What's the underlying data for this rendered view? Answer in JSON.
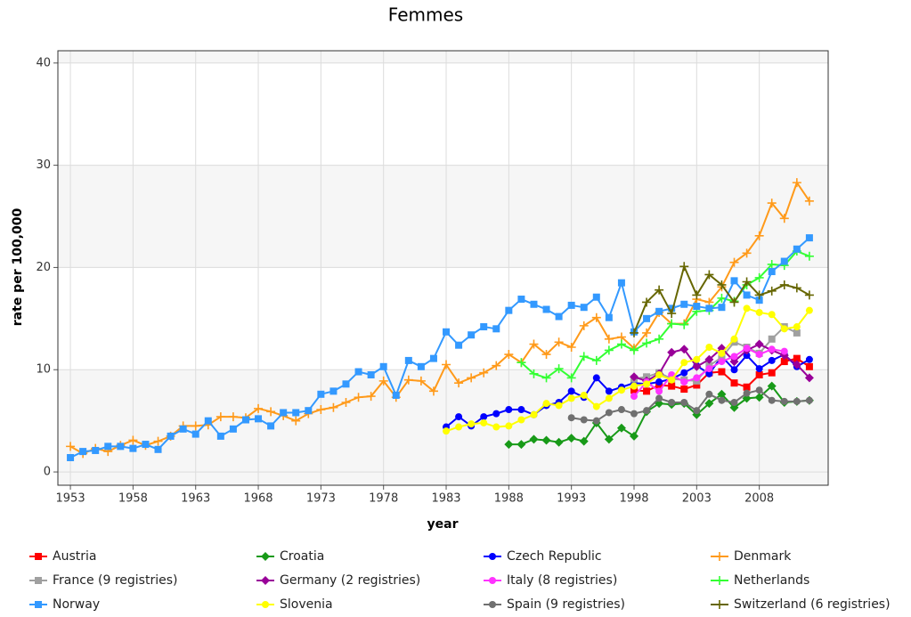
{
  "chart_data": {
    "type": "line",
    "title": "Femmes",
    "x_label": "year",
    "y_label": "rate per 100,000",
    "x": [
      1953,
      1954,
      1955,
      1956,
      1957,
      1958,
      1959,
      1960,
      1961,
      1962,
      1963,
      1964,
      1965,
      1966,
      1967,
      1968,
      1969,
      1970,
      1971,
      1972,
      1973,
      1974,
      1975,
      1976,
      1977,
      1978,
      1979,
      1980,
      1981,
      1982,
      1983,
      1984,
      1985,
      1986,
      1987,
      1988,
      1989,
      1990,
      1991,
      1992,
      1993,
      1994,
      1995,
      1996,
      1997,
      1998,
      1999,
      2000,
      2001,
      2002,
      2003,
      2004,
      2005,
      2006,
      2007,
      2008,
      2009,
      2010,
      2011,
      2012
    ],
    "xlim": [
      1952,
      2013.5
    ],
    "xticks": [
      1953,
      1958,
      1963,
      1968,
      1973,
      1978,
      1983,
      1988,
      1993,
      1998,
      2003,
      2008
    ],
    "ylim": [
      -1.3,
      41.2
    ],
    "yticks": [
      0,
      10,
      20,
      30,
      40
    ],
    "grid": true,
    "legend": "bottom",
    "series": [
      {
        "name": "Austria",
        "color": "#ff0000",
        "marker": "square",
        "values": [
          null,
          null,
          null,
          null,
          null,
          null,
          null,
          null,
          null,
          null,
          null,
          null,
          null,
          null,
          null,
          null,
          null,
          null,
          null,
          null,
          null,
          null,
          null,
          null,
          null,
          null,
          null,
          null,
          null,
          null,
          null,
          null,
          null,
          null,
          null,
          null,
          null,
          null,
          null,
          null,
          null,
          null,
          null,
          null,
          null,
          8.0,
          7.9,
          8.5,
          8.4,
          8.1,
          8.5,
          9.7,
          9.8,
          8.7,
          8.3,
          9.5,
          9.7,
          10.8,
          11.1,
          10.3
        ]
      },
      {
        "name": "Croatia",
        "color": "#189a18",
        "marker": "diamond",
        "values": [
          null,
          null,
          null,
          null,
          null,
          null,
          null,
          null,
          null,
          null,
          null,
          null,
          null,
          null,
          null,
          null,
          null,
          null,
          null,
          null,
          null,
          null,
          null,
          null,
          null,
          null,
          null,
          null,
          null,
          null,
          null,
          null,
          null,
          null,
          null,
          2.7,
          2.7,
          3.2,
          3.1,
          2.9,
          3.3,
          3.0,
          4.8,
          3.2,
          4.3,
          3.5,
          5.9,
          6.7,
          6.6,
          6.7,
          5.6,
          6.7,
          7.6,
          6.3,
          7.2,
          7.3,
          8.4,
          6.8,
          6.9,
          7.0
        ]
      },
      {
        "name": "Czech Republic",
        "color": "#0000ff",
        "marker": "circle",
        "values": [
          null,
          null,
          null,
          null,
          null,
          null,
          null,
          null,
          null,
          null,
          null,
          null,
          null,
          null,
          null,
          null,
          null,
          null,
          null,
          null,
          null,
          null,
          null,
          null,
          null,
          null,
          null,
          null,
          null,
          null,
          4.4,
          5.4,
          4.5,
          5.4,
          5.7,
          6.1,
          6.1,
          5.6,
          6.5,
          6.8,
          7.9,
          7.3,
          9.2,
          7.9,
          8.3,
          8.7,
          8.6,
          8.8,
          9.1,
          9.7,
          10.4,
          9.6,
          11.3,
          10.0,
          11.4,
          10.1,
          10.9,
          11.5,
          10.3,
          11.0
        ]
      },
      {
        "name": "Denmark",
        "color": "#ff9a1a",
        "marker": "plus",
        "values": [
          2.5,
          1.8,
          2.3,
          2.0,
          2.6,
          3.1,
          2.6,
          3.0,
          3.5,
          4.5,
          4.5,
          4.6,
          5.4,
          5.4,
          5.3,
          6.2,
          5.9,
          5.5,
          5.0,
          5.7,
          6.1,
          6.3,
          6.8,
          7.3,
          7.4,
          8.9,
          7.3,
          9.0,
          8.9,
          7.9,
          10.5,
          8.7,
          9.2,
          9.7,
          10.4,
          11.5,
          10.7,
          12.5,
          11.5,
          12.7,
          12.2,
          14.3,
          15.1,
          13.0,
          13.2,
          12.1,
          13.6,
          15.6,
          14.5,
          14.5,
          16.9,
          16.6,
          18.1,
          20.5,
          21.4,
          23.1,
          26.3,
          24.8,
          28.3,
          26.5
        ]
      },
      {
        "name": "France (9 registries)",
        "color": "#a0a0a0",
        "marker": "square",
        "values": [
          null,
          null,
          null,
          null,
          null,
          null,
          null,
          null,
          null,
          null,
          null,
          null,
          null,
          null,
          null,
          null,
          null,
          null,
          null,
          null,
          null,
          null,
          null,
          null,
          null,
          null,
          null,
          null,
          null,
          null,
          null,
          null,
          null,
          null,
          null,
          null,
          null,
          null,
          null,
          null,
          null,
          null,
          null,
          null,
          null,
          9.1,
          9.3,
          9.7,
          9.1,
          9.0,
          8.9,
          10.4,
          11.2,
          12.7,
          12.2,
          11.6,
          13.0,
          14.2,
          13.6,
          null
        ]
      },
      {
        "name": "Germany (2 registries)",
        "color": "#990099",
        "marker": "diamond",
        "values": [
          null,
          null,
          null,
          null,
          null,
          null,
          null,
          null,
          null,
          null,
          null,
          null,
          null,
          null,
          null,
          null,
          null,
          null,
          null,
          null,
          null,
          null,
          null,
          null,
          null,
          null,
          null,
          null,
          null,
          null,
          null,
          null,
          null,
          null,
          null,
          null,
          null,
          null,
          null,
          null,
          null,
          null,
          null,
          null,
          null,
          9.3,
          8.9,
          9.6,
          11.7,
          12.0,
          10.3,
          11.0,
          12.1,
          10.8,
          11.9,
          12.5,
          11.9,
          11.4,
          10.5,
          9.2
        ]
      },
      {
        "name": "Italy (8 registries)",
        "color": "#ff33ff",
        "marker": "circle",
        "values": [
          null,
          null,
          null,
          null,
          null,
          null,
          null,
          null,
          null,
          null,
          null,
          null,
          null,
          null,
          null,
          null,
          null,
          null,
          null,
          null,
          null,
          null,
          null,
          null,
          null,
          null,
          null,
          null,
          null,
          null,
          null,
          null,
          null,
          null,
          null,
          null,
          null,
          null,
          null,
          null,
          null,
          null,
          null,
          null,
          null,
          7.4,
          8.8,
          7.9,
          9.5,
          8.8,
          9.2,
          10.1,
          10.8,
          11.3,
          12.1,
          11.5,
          12.0,
          11.8,
          null,
          null
        ]
      },
      {
        "name": "Netherlands",
        "color": "#33ff33",
        "marker": "plus",
        "values": [
          null,
          null,
          null,
          null,
          null,
          null,
          null,
          null,
          null,
          null,
          null,
          null,
          null,
          null,
          null,
          null,
          null,
          null,
          null,
          null,
          null,
          null,
          null,
          null,
          null,
          null,
          null,
          null,
          null,
          null,
          null,
          null,
          null,
          null,
          null,
          null,
          10.7,
          9.6,
          9.2,
          10.1,
          9.2,
          11.3,
          10.9,
          11.9,
          12.5,
          11.9,
          12.6,
          13.0,
          14.5,
          14.4,
          15.7,
          15.8,
          17.0,
          16.7,
          18.3,
          19.0,
          20.3,
          20.2,
          21.6,
          21.1
        ]
      },
      {
        "name": "Norway",
        "color": "#3399ff",
        "marker": "square",
        "values": [
          1.4,
          2.0,
          2.1,
          2.5,
          2.5,
          2.3,
          2.7,
          2.2,
          3.5,
          4.2,
          3.7,
          5.0,
          3.5,
          4.2,
          5.1,
          5.2,
          4.5,
          5.8,
          5.8,
          6.0,
          7.6,
          7.9,
          8.6,
          9.8,
          9.5,
          10.3,
          7.5,
          10.9,
          10.3,
          11.1,
          13.7,
          12.4,
          13.4,
          14.2,
          14.0,
          15.8,
          16.9,
          16.4,
          15.9,
          15.2,
          16.3,
          16.1,
          17.1,
          15.1,
          18.5,
          13.7,
          15.0,
          15.7,
          16.0,
          16.4,
          16.2,
          16.0,
          16.1,
          18.7,
          17.3,
          16.8,
          19.6,
          20.6,
          21.8,
          22.9
        ]
      },
      {
        "name": "Slovenia",
        "color": "#ffff00",
        "marker": "circle",
        "values": [
          null,
          null,
          null,
          null,
          null,
          null,
          null,
          null,
          null,
          null,
          null,
          null,
          null,
          null,
          null,
          null,
          null,
          null,
          null,
          null,
          null,
          null,
          null,
          null,
          null,
          null,
          null,
          null,
          null,
          null,
          4.0,
          4.4,
          4.7,
          4.8,
          4.4,
          4.5,
          5.1,
          5.6,
          6.7,
          6.5,
          7.2,
          7.5,
          6.4,
          7.2,
          8.0,
          8.4,
          8.6,
          9.5,
          9.0,
          10.7,
          11.0,
          12.2,
          11.6,
          13.0,
          16.0,
          15.6,
          15.4,
          14.0,
          14.2,
          15.8
        ]
      },
      {
        "name": "Spain (9 registries)",
        "color": "#707070",
        "marker": "circle",
        "values": [
          null,
          null,
          null,
          null,
          null,
          null,
          null,
          null,
          null,
          null,
          null,
          null,
          null,
          null,
          null,
          null,
          null,
          null,
          null,
          null,
          null,
          null,
          null,
          null,
          null,
          null,
          null,
          null,
          null,
          null,
          null,
          null,
          null,
          null,
          null,
          null,
          null,
          null,
          null,
          null,
          5.3,
          5.1,
          5.0,
          5.8,
          6.1,
          5.7,
          6.0,
          7.2,
          6.8,
          6.8,
          6.0,
          7.6,
          7.0,
          6.8,
          7.7,
          8.0,
          7.0,
          6.9,
          6.9,
          7.0
        ]
      },
      {
        "name": "Switzerland (6 registries)",
        "color": "#666600",
        "marker": "plus",
        "values": [
          null,
          null,
          null,
          null,
          null,
          null,
          null,
          null,
          null,
          null,
          null,
          null,
          null,
          null,
          null,
          null,
          null,
          null,
          null,
          null,
          null,
          null,
          null,
          null,
          null,
          null,
          null,
          null,
          null,
          null,
          null,
          null,
          null,
          null,
          null,
          null,
          null,
          null,
          null,
          null,
          null,
          null,
          null,
          null,
          null,
          13.6,
          16.6,
          17.8,
          15.5,
          20.1,
          17.3,
          19.3,
          18.3,
          16.6,
          18.6,
          17.3,
          17.7,
          18.3,
          18.0,
          17.3
        ]
      }
    ]
  }
}
